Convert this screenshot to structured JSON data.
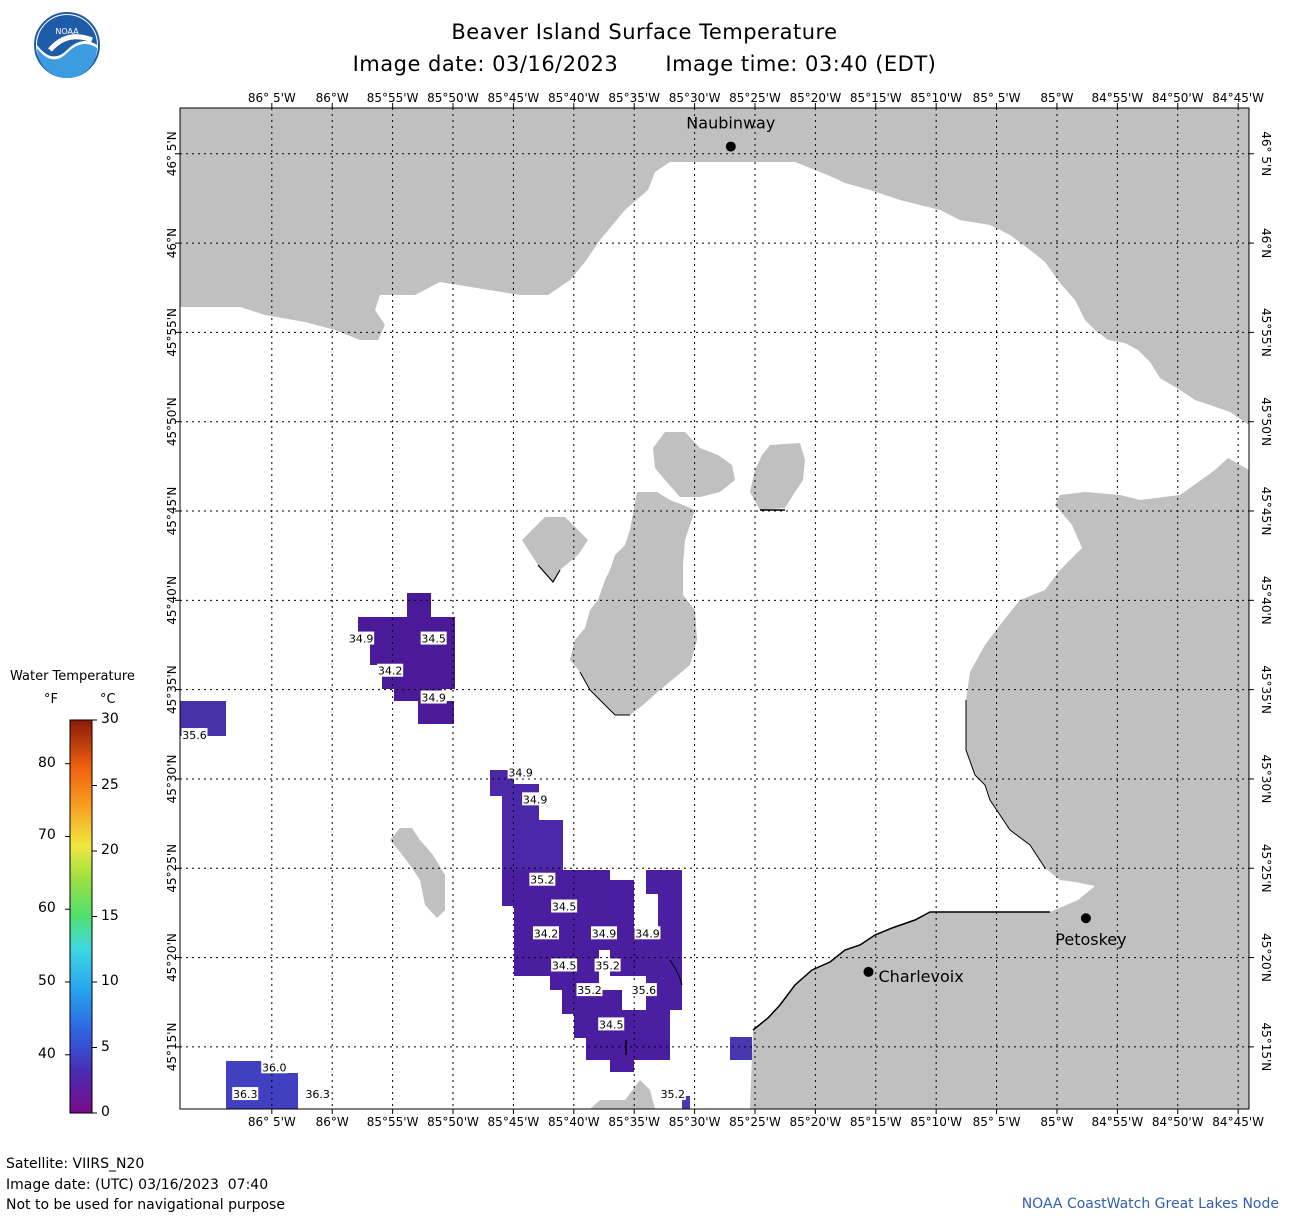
{
  "header": {
    "title": "Beaver Island Surface Temperature",
    "image_date": "Image date: 03/16/2023",
    "image_time": "Image time: 03:40 (EDT)"
  },
  "logo": {
    "text": "NOAA",
    "colors": {
      "top": "#1f5ca8",
      "wave": "#3d9be0"
    }
  },
  "map": {
    "colors": {
      "land": "#c0c0c0",
      "water": "#ffffff",
      "grid": "#000000"
    },
    "lon_labels": [
      "86° 5'W",
      "86°W",
      "85°55'W",
      "85°50'W",
      "85°45'W",
      "85°40'W",
      "85°35'W",
      "85°30'W",
      "85°25'W",
      "85°20'W",
      "85°15'W",
      "85°10'W",
      "85° 5'W",
      "85°W",
      "84°55'W",
      "84°50'W",
      "84°45'W"
    ],
    "lat_labels": [
      "46° 5'N",
      "46°N",
      "45°55'N",
      "45°50'N",
      "45°45'N",
      "45°40'N",
      "45°35'N",
      "45°30'N",
      "45°25'N",
      "45°20'N",
      "45°15'N"
    ],
    "cities": [
      {
        "name": "Naubinway",
        "lon": -85.45,
        "lat": 46.09
      },
      {
        "name": "Charlevoix",
        "lon": -85.26,
        "lat": 45.32
      },
      {
        "name": "Petoskey",
        "lon": -84.96,
        "lat": 45.37
      }
    ],
    "temperature_labels_f": [
      {
        "value": "34.9",
        "lon": -85.96,
        "lat": 45.63
      },
      {
        "value": "34.5",
        "lon": -85.86,
        "lat": 45.63
      },
      {
        "value": "34.2",
        "lon": -85.92,
        "lat": 45.6
      },
      {
        "value": "34.9",
        "lon": -85.86,
        "lat": 45.575
      },
      {
        "value": "35.6",
        "lon": -86.19,
        "lat": 45.54
      },
      {
        "value": "34.9",
        "lon": -85.74,
        "lat": 45.505
      },
      {
        "value": "34.9",
        "lon": -85.72,
        "lat": 45.48
      },
      {
        "value": "35.2",
        "lon": -85.71,
        "lat": 45.405
      },
      {
        "value": "34.5",
        "lon": -85.68,
        "lat": 45.38
      },
      {
        "value": "34.2",
        "lon": -85.705,
        "lat": 45.355
      },
      {
        "value": "34.9",
        "lon": -85.625,
        "lat": 45.355
      },
      {
        "value": "34.9",
        "lon": -85.565,
        "lat": 45.355
      },
      {
        "value": "34.5",
        "lon": -85.68,
        "lat": 45.325
      },
      {
        "value": "35.2",
        "lon": -85.62,
        "lat": 45.325
      },
      {
        "value": "35.2",
        "lon": -85.645,
        "lat": 45.302
      },
      {
        "value": "35.6",
        "lon": -85.57,
        "lat": 45.302
      },
      {
        "value": "34.5",
        "lon": -85.615,
        "lat": 45.27
      },
      {
        "value": "36.0",
        "lon": -86.08,
        "lat": 45.23
      },
      {
        "value": "36.3",
        "lon": -86.12,
        "lat": 45.205
      },
      {
        "value": "36.3",
        "lon": -86.02,
        "lat": 45.205
      },
      {
        "value": "35.2",
        "lon": -85.53,
        "lat": 45.205
      }
    ]
  },
  "legend": {
    "title": "Water Temperature",
    "unit_f": "°F",
    "unit_c": "°C",
    "f_ticks": [
      "80",
      "70",
      "60",
      "50",
      "40"
    ],
    "c_ticks": [
      "30",
      "25",
      "20",
      "15",
      "10",
      "5",
      "0"
    ]
  },
  "footer": {
    "satellite": "Satellite: VIIRS_N20",
    "utc_date": "Image date: (UTC) 03/16/2023  07:40",
    "disclaimer": "Not to be used for navigational purpose",
    "credit": "NOAA CoastWatch Great Lakes Node"
  }
}
